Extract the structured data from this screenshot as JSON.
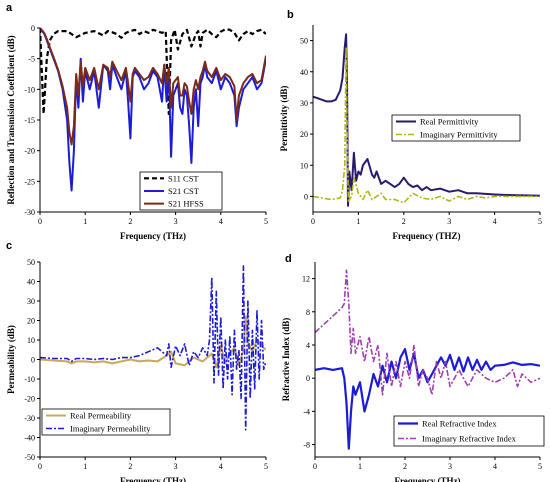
{
  "chart_data": [
    {
      "panel": "a",
      "type": "line",
      "xlabel": "Frequency (THz)",
      "ylabel": "Reflection and Transmision Coefficient (dB)",
      "xlim": [
        0,
        5
      ],
      "ylim": [
        -30,
        0
      ],
      "xticks": [
        0,
        1,
        2,
        3,
        4,
        5
      ],
      "yticks": [
        0,
        -5,
        -10,
        -15,
        -20,
        -25,
        -30
      ],
      "grid": false,
      "legend_position": "bottom-right",
      "series": [
        {
          "name": "S11 CST",
          "color": "#000000",
          "dash": "5,3",
          "width": 2.2,
          "x": [
            0,
            0.08,
            0.15,
            0.22,
            0.3,
            0.4,
            0.6,
            0.8,
            1.0,
            1.2,
            1.4,
            1.5,
            1.6,
            1.7,
            1.8,
            1.9,
            2.0,
            2.1,
            2.2,
            2.3,
            2.4,
            2.5,
            2.6,
            2.7,
            2.78,
            2.85,
            2.9,
            2.98,
            3.05,
            3.15,
            3.25,
            3.35,
            3.45,
            3.5,
            3.55,
            3.6,
            3.7,
            3.8,
            3.9,
            4.0,
            4.1,
            4.2,
            4.3,
            4.4,
            4.5,
            4.6,
            4.7,
            4.8,
            4.9,
            5.0
          ],
          "y": [
            0,
            -14,
            -5,
            -2,
            -1,
            -0.5,
            -0.5,
            -1.5,
            -0.8,
            -0.5,
            -1.2,
            -0.5,
            -0.7,
            -1.0,
            -1.6,
            -0.8,
            -0.5,
            -0.3,
            -1.0,
            -0.5,
            -0.8,
            -0.3,
            -0.5,
            -0.8,
            -0.5,
            -14,
            -2,
            -0.3,
            -3.5,
            -1,
            -0.3,
            -3,
            -1,
            -0.5,
            -3,
            -0.8,
            -0.3,
            -1,
            -1.5,
            -0.6,
            -0.2,
            -0.3,
            -0.8,
            -2,
            -1,
            -0.5,
            -1,
            -0.5,
            -0.3,
            -1
          ]
        },
        {
          "name": "S21 CST",
          "color": "#1c1cd6",
          "dash": "",
          "width": 2,
          "x": [
            0,
            0.05,
            0.1,
            0.15,
            0.2,
            0.3,
            0.4,
            0.5,
            0.6,
            0.65,
            0.7,
            0.75,
            0.8,
            0.85,
            0.9,
            0.95,
            1.0,
            1.1,
            1.2,
            1.3,
            1.4,
            1.5,
            1.55,
            1.6,
            1.7,
            1.8,
            1.9,
            1.95,
            2.0,
            2.05,
            2.1,
            2.2,
            2.3,
            2.4,
            2.5,
            2.6,
            2.7,
            2.75,
            2.8,
            2.85,
            2.9,
            2.95,
            3.0,
            3.05,
            3.1,
            3.15,
            3.2,
            3.25,
            3.3,
            3.35,
            3.4,
            3.45,
            3.5,
            3.55,
            3.6,
            3.65,
            3.7,
            3.8,
            3.9,
            4.0,
            4.1,
            4.2,
            4.3,
            4.35,
            4.4,
            4.5,
            4.6,
            4.7,
            4.8,
            4.9,
            5.0
          ],
          "y": [
            0,
            -0.5,
            -1,
            -2,
            -3,
            -5,
            -7,
            -10,
            -15,
            -22,
            -26.5,
            -20,
            -8,
            -13,
            -5,
            -12,
            -7,
            -10,
            -7,
            -13,
            -6,
            -7,
            -10,
            -6,
            -8,
            -10,
            -7,
            -12,
            -18,
            -8,
            -7,
            -8,
            -10,
            -9,
            -7,
            -8,
            -12,
            -6,
            -12,
            -7,
            -21,
            -11,
            -10,
            -9,
            -13,
            -14,
            -10,
            -11,
            -16,
            -22,
            -13,
            -10,
            -16,
            -9,
            -8,
            -6,
            -8,
            -9,
            -7,
            -10,
            -8,
            -9,
            -11,
            -16,
            -13,
            -10,
            -9,
            -8,
            -10,
            -9,
            -5
          ]
        },
        {
          "name": "S21 HFSS",
          "color": "#7b2a1a",
          "dash": "",
          "width": 2,
          "x": [
            0,
            0.05,
            0.1,
            0.15,
            0.2,
            0.3,
            0.4,
            0.5,
            0.6,
            0.65,
            0.7,
            0.75,
            0.8,
            0.85,
            0.9,
            0.95,
            1.0,
            1.1,
            1.2,
            1.3,
            1.4,
            1.5,
            1.55,
            1.6,
            1.7,
            1.8,
            1.9,
            1.95,
            2.0,
            2.05,
            2.1,
            2.2,
            2.3,
            2.4,
            2.5,
            2.6,
            2.7,
            2.75,
            2.8,
            2.85,
            2.9,
            2.95,
            3.0,
            3.05,
            3.1,
            3.15,
            3.2,
            3.25,
            3.3,
            3.35,
            3.4,
            3.45,
            3.5,
            3.55,
            3.6,
            3.65,
            3.7,
            3.8,
            3.9,
            4.0,
            4.1,
            4.2,
            4.3,
            4.35,
            4.4,
            4.5,
            4.6,
            4.7,
            4.8,
            4.9,
            5.0
          ],
          "y": [
            0,
            -0.4,
            -0.9,
            -1.8,
            -2.8,
            -4.8,
            -6.8,
            -9.5,
            -13,
            -17,
            -19,
            -16,
            -7.5,
            -11,
            -5.5,
            -9.5,
            -6.5,
            -8.5,
            -6.5,
            -10,
            -6,
            -6.5,
            -8,
            -5.5,
            -7,
            -8.5,
            -6.5,
            -9,
            -12,
            -7.5,
            -6.5,
            -7.5,
            -8.5,
            -8,
            -6.5,
            -7.5,
            -9,
            -6,
            -9,
            -6.5,
            -13,
            -9,
            -8.5,
            -8,
            -11,
            -11,
            -9,
            -9.5,
            -12,
            -14,
            -10,
            -8.5,
            -10,
            -8,
            -7,
            -5.5,
            -7,
            -8,
            -6.5,
            -8.5,
            -7.5,
            -8,
            -9.5,
            -15,
            -11,
            -9,
            -8,
            -7.5,
            -9,
            -8.5,
            -4.5
          ]
        }
      ]
    },
    {
      "panel": "b",
      "type": "line",
      "xlabel": "Frequency (THZ)",
      "ylabel": "Permittivity (dB)",
      "xlim": [
        0,
        5
      ],
      "ylim": [
        -5,
        55
      ],
      "xticks": [
        0,
        1,
        2,
        3,
        4,
        5
      ],
      "yticks": [
        0,
        10,
        20,
        30,
        40,
        50
      ],
      "grid": false,
      "legend_position": "middle-right",
      "series": [
        {
          "name": "Real Permittivity",
          "color": "#2a1a6e",
          "dash": "",
          "width": 2,
          "x": [
            0,
            0.1,
            0.2,
            0.3,
            0.4,
            0.5,
            0.6,
            0.65,
            0.7,
            0.73,
            0.75,
            0.77,
            0.8,
            0.85,
            0.9,
            0.95,
            1.0,
            1.05,
            1.1,
            1.2,
            1.3,
            1.35,
            1.4,
            1.5,
            1.6,
            1.7,
            1.8,
            1.9,
            2.0,
            2.05,
            2.1,
            2.2,
            2.3,
            2.4,
            2.5,
            2.6,
            2.8,
            3.0,
            3.2,
            3.4,
            3.6,
            3.8,
            4.0,
            4.2,
            4.5,
            4.8,
            5.0
          ],
          "y": [
            32,
            31.5,
            31,
            30.5,
            30.5,
            31,
            34,
            38,
            48,
            52,
            35,
            -3,
            8,
            2,
            14,
            5,
            8,
            7,
            10,
            12,
            7,
            6,
            8,
            4,
            5,
            4,
            3,
            4,
            6,
            5,
            4,
            3,
            3.5,
            2,
            3,
            2,
            2.5,
            1.5,
            2,
            1,
            1,
            0.8,
            0.6,
            0.5,
            0.4,
            0.3,
            0.2
          ]
        },
        {
          "name": "Imaginary Permittivity",
          "color": "#b0b818",
          "dash": "6,2,2,2",
          "width": 1.6,
          "x": [
            0,
            0.2,
            0.4,
            0.6,
            0.65,
            0.7,
            0.73,
            0.75,
            0.78,
            0.8,
            0.85,
            0.9,
            1.0,
            1.1,
            1.2,
            1.3,
            1.4,
            1.5,
            1.6,
            1.8,
            2.0,
            2.2,
            2.4,
            2.6,
            2.8,
            3.0,
            3.2,
            3.4,
            3.6,
            3.8,
            4.0,
            4.5,
            5.0
          ],
          "y": [
            0,
            -0.5,
            -1,
            -0.5,
            2,
            10,
            48,
            20,
            -2,
            -1,
            0,
            6,
            1,
            -1,
            2,
            -1,
            0,
            1,
            -1,
            -1,
            -2,
            1,
            -0.5,
            -1,
            0,
            -1.5,
            0,
            -1,
            0,
            -0.5,
            0,
            0,
            0
          ]
        }
      ]
    },
    {
      "panel": "c",
      "type": "line",
      "xlabel": "Frequency (THz)",
      "ylabel": "Permeability (dB)",
      "xlim": [
        0,
        5
      ],
      "ylim": [
        -50,
        50
      ],
      "xticks": [
        0,
        1,
        2,
        3,
        4,
        5
      ],
      "yticks": [
        50,
        40,
        30,
        20,
        10,
        0,
        -10,
        -20,
        -30,
        -40,
        -50
      ],
      "grid": false,
      "legend_position": "bottom-left",
      "series": [
        {
          "name": "Real Permeability",
          "color": "#c9a85c",
          "dash": "",
          "width": 2,
          "x": [
            0,
            0.3,
            0.6,
            0.7,
            0.8,
            1.0,
            1.2,
            1.4,
            1.6,
            1.8,
            2.0,
            2.2,
            2.4,
            2.6,
            2.8,
            2.9,
            3.0,
            3.2,
            3.4,
            3.6,
            3.8,
            3.9,
            4.0,
            4.1,
            4.2,
            4.3,
            4.4,
            4.5,
            4.55,
            4.6,
            4.7,
            4.8,
            4.9,
            5.0
          ],
          "y": [
            0,
            -0.5,
            -1,
            -2,
            -1,
            -1,
            -1.5,
            -1,
            -2,
            -1,
            0,
            -1,
            -0.5,
            -1,
            2,
            4,
            -2,
            -3,
            1,
            -1,
            3,
            -4,
            7,
            -2,
            3,
            6,
            -3,
            5,
            22,
            9,
            4,
            10,
            7,
            5
          ]
        },
        {
          "name": "Imaginary Permeability",
          "color": "#1c1cd6",
          "dash": "6,2,2,2",
          "width": 1.6,
          "x": [
            0,
            0.3,
            0.6,
            0.7,
            0.8,
            1.0,
            1.2,
            1.4,
            1.6,
            1.8,
            2.0,
            2.2,
            2.4,
            2.6,
            2.8,
            2.85,
            2.9,
            3.0,
            3.1,
            3.2,
            3.3,
            3.4,
            3.5,
            3.6,
            3.7,
            3.75,
            3.8,
            3.85,
            3.9,
            3.95,
            4.0,
            4.05,
            4.1,
            4.15,
            4.2,
            4.25,
            4.3,
            4.35,
            4.4,
            4.45,
            4.5,
            4.55,
            4.6,
            4.65,
            4.7,
            4.75,
            4.8,
            4.85,
            4.9,
            4.95,
            5.0
          ],
          "y": [
            1,
            0.5,
            0.5,
            -1,
            0.5,
            0.5,
            0,
            0.5,
            0,
            1,
            1,
            2,
            4,
            6,
            2,
            8,
            -4,
            7,
            2,
            8,
            -3,
            4,
            1,
            6,
            2,
            10,
            42,
            -12,
            35,
            -8,
            22,
            -15,
            10,
            -10,
            12,
            -18,
            15,
            -5,
            5,
            -20,
            48,
            -36,
            30,
            -20,
            15,
            -15,
            25,
            -10,
            20,
            -5,
            -1
          ]
        }
      ]
    },
    {
      "panel": "d",
      "type": "line",
      "xlabel": "Frequency (THz)",
      "ylabel": "Refractive Index (dB)",
      "xlim": [
        0,
        5
      ],
      "ylim": [
        -9.5,
        14
      ],
      "xticks": [
        0,
        1,
        2,
        3,
        4,
        5
      ],
      "yticks": [
        12,
        8,
        4,
        0,
        -4,
        -8
      ],
      "grid": false,
      "legend_position": "bottom-right",
      "series": [
        {
          "name": "Real Refractive Index",
          "color": "#1c1cd6",
          "dash": "",
          "width": 2.2,
          "x": [
            0,
            0.2,
            0.4,
            0.6,
            0.65,
            0.7,
            0.75,
            0.8,
            0.85,
            0.9,
            1.0,
            1.1,
            1.2,
            1.3,
            1.4,
            1.5,
            1.6,
            1.7,
            1.8,
            1.9,
            2.0,
            2.1,
            2.2,
            2.3,
            2.4,
            2.5,
            2.6,
            2.7,
            2.8,
            2.9,
            3.0,
            3.1,
            3.2,
            3.3,
            3.4,
            3.5,
            3.6,
            3.7,
            3.8,
            3.9,
            4.0,
            4.2,
            4.4,
            4.6,
            4.8,
            5.0
          ],
          "y": [
            1,
            1.2,
            1,
            1.2,
            0,
            -3,
            -8.5,
            -4,
            -1,
            -2,
            -0.5,
            -4,
            -2,
            0.5,
            -1,
            1.5,
            -0.5,
            2,
            0,
            2.5,
            3.5,
            1,
            3,
            0,
            1,
            -0.5,
            0.5,
            1.5,
            2.5,
            1.5,
            2.8,
            1,
            2.5,
            0.8,
            2.5,
            1,
            2.2,
            1,
            2,
            1,
            1.5,
            1.6,
            1.9,
            1.6,
            1.7,
            1.5
          ]
        },
        {
          "name": "Imaginary Refractive Index",
          "color": "#a040b0",
          "dash": "6,2,2,2",
          "width": 1.6,
          "x": [
            0,
            0.1,
            0.2,
            0.3,
            0.4,
            0.5,
            0.6,
            0.65,
            0.7,
            0.75,
            0.8,
            0.85,
            0.9,
            1.0,
            1.1,
            1.2,
            1.3,
            1.4,
            1.5,
            1.6,
            1.7,
            1.8,
            1.9,
            2.0,
            2.1,
            2.2,
            2.3,
            2.4,
            2.5,
            2.6,
            2.7,
            2.8,
            2.9,
            3.0,
            3.2,
            3.4,
            3.6,
            3.8,
            4.0,
            4.2,
            4.4,
            4.5,
            4.6,
            4.8,
            5.0
          ],
          "y": [
            5.5,
            6,
            6.5,
            7,
            7.5,
            8,
            8.5,
            9,
            13,
            9,
            3,
            6,
            3,
            5,
            2,
            5,
            2,
            4,
            -2,
            3,
            -1,
            2,
            -1,
            2,
            0,
            4,
            -1,
            1,
            0,
            -2,
            2,
            0,
            2,
            -1,
            1,
            -1,
            1,
            0,
            -0.5,
            0,
            1,
            -1,
            0.5,
            -0.5,
            0
          ]
        }
      ]
    }
  ],
  "panel_labels": [
    "a",
    "b",
    "c",
    "d"
  ]
}
